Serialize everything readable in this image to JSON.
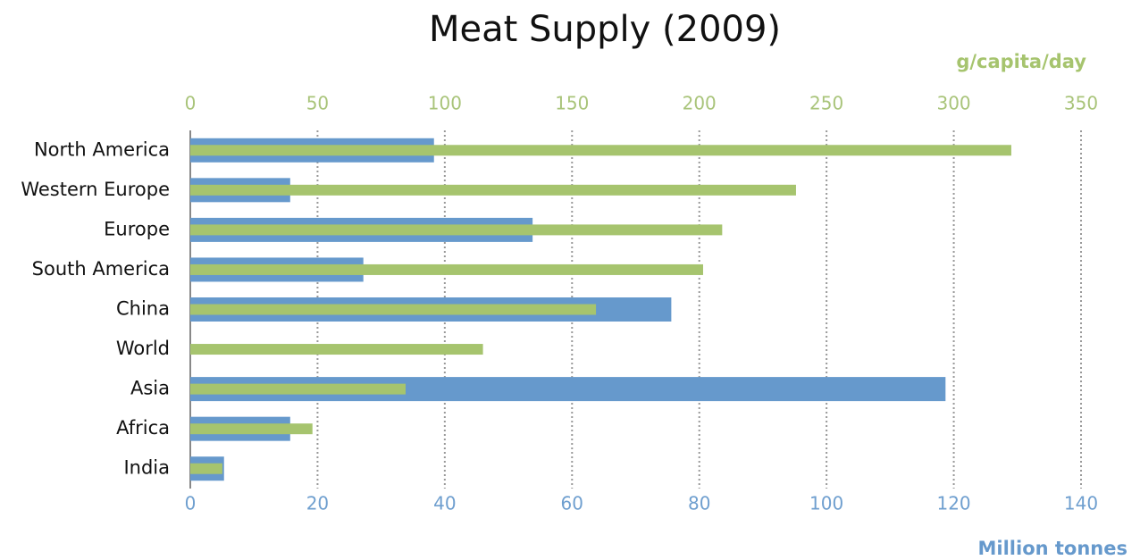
{
  "chart_data": {
    "type": "hbar",
    "title": "Meat Supply (2009)",
    "categories": [
      "North America",
      "Western Europe",
      "Europe",
      "South America",
      "China",
      "World",
      "Asia",
      "Africa",
      "India"
    ],
    "series": [
      {
        "color": "#6699cc",
        "values": [
          38.3,
          15.7,
          53.8,
          27.2,
          75.6,
          null,
          118.7,
          15.7,
          5.3
        ]
      },
      {
        "color": "#a6c46e",
        "axis": "x2",
        "values": [
          322.6,
          238,
          209,
          201.5,
          159.4,
          115,
          84.6,
          48,
          12.6
        ]
      }
    ],
    "xlabel": "Million tonnes",
    "xlim": [
      0,
      140
    ],
    "xticks": [
      0,
      20,
      40,
      60,
      80,
      100,
      120,
      140
    ],
    "x2label": "g/capita/day",
    "x2lim": [
      0,
      350
    ],
    "x2ticks": [
      0,
      50,
      100,
      150,
      200,
      250,
      300,
      350
    ],
    "grid": true
  }
}
